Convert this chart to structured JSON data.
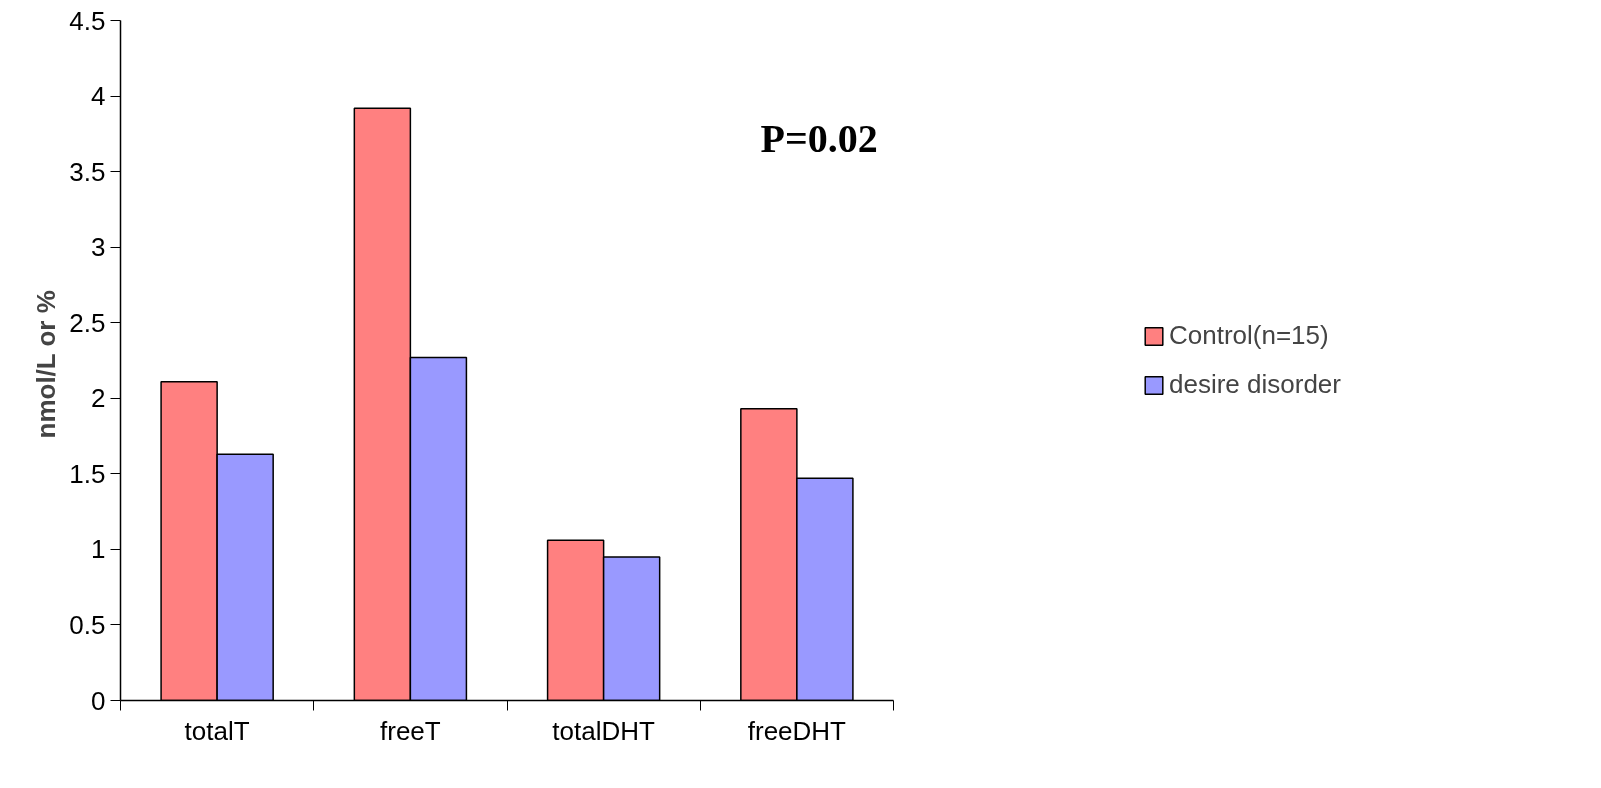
{
  "chart_data": {
    "type": "bar",
    "ylabel": "nmol/L or  %",
    "categories": [
      "totalT",
      "freeT",
      "totalDHT",
      "freeDHT"
    ],
    "series": [
      {
        "name": "Control(n=15)",
        "color": "#ff8080",
        "values": [
          2.11,
          3.92,
          1.06,
          1.93
        ]
      },
      {
        "name": "desire disorder",
        "color": "#9999ff",
        "values": [
          1.63,
          2.27,
          0.95,
          1.47
        ]
      }
    ],
    "ylim": [
      0,
      4.5
    ],
    "yticks": [
      0,
      0.5,
      1,
      1.5,
      2,
      2.5,
      3,
      3.5,
      4,
      4.5
    ],
    "annotations": [
      "P=0.02"
    ],
    "grid": false,
    "legend": "right"
  }
}
